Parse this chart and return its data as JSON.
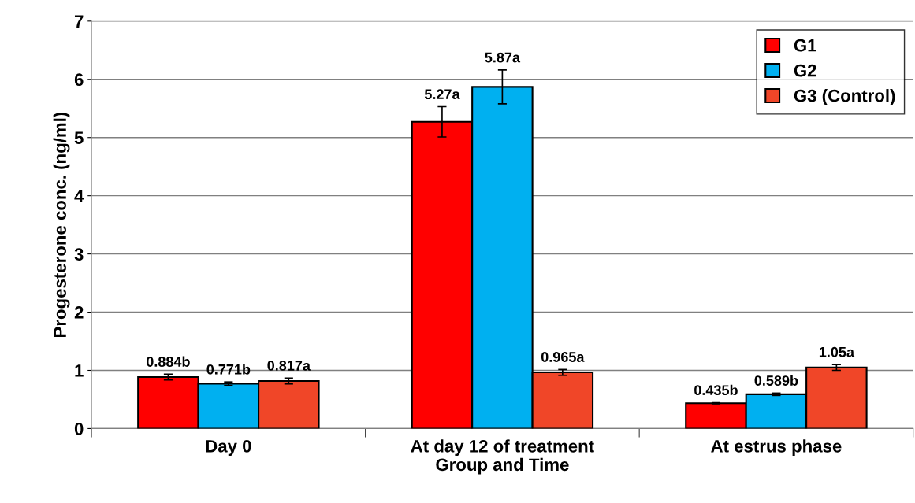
{
  "chart_data": {
    "type": "bar",
    "xlabel": "Group and Time",
    "ylabel": "Progesterone conc. (ng/ml)",
    "categories": [
      "Day 0",
      "At day 12 of treatment",
      "At estrus phase"
    ],
    "series": [
      {
        "name": "G1",
        "color": "#ff0000",
        "values": [
          0.884,
          5.27,
          0.435
        ],
        "errors": [
          0.05,
          0.26,
          0.01
        ],
        "value_labels": [
          "0.884b",
          "5.27a",
          "0.435b"
        ]
      },
      {
        "name": "G2",
        "color": "#00b0f0",
        "values": [
          0.771,
          5.87,
          0.589
        ],
        "errors": [
          0.03,
          0.29,
          0.02
        ],
        "value_labels": [
          "0.771b",
          "5.87a",
          "0.589b"
        ]
      },
      {
        "name": "G3 (Control)",
        "color": "#f04628",
        "values": [
          0.817,
          0.965,
          1.05
        ],
        "errors": [
          0.05,
          0.05,
          0.05
        ],
        "value_labels": [
          "0.817a",
          "0.965a",
          "1.05a"
        ]
      }
    ],
    "ylim": [
      0,
      7
    ],
    "yticks": [
      0,
      1,
      2,
      3,
      4,
      5,
      6,
      7
    ],
    "grid": "y",
    "legend": "top right"
  }
}
